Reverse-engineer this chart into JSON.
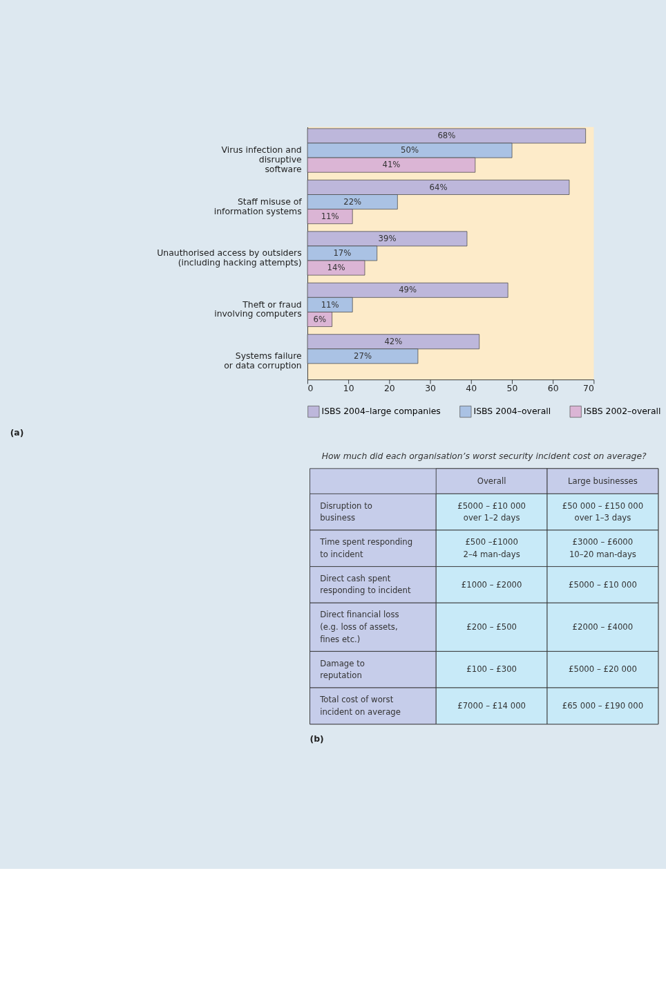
{
  "chart_data": [
    {
      "type": "bar",
      "orientation": "horizontal",
      "annotations": [
        "(a)"
      ],
      "categories": [
        "Virus infection and\ndisruptive\nsoftware",
        "Staff misuse of\ninformation systems",
        "Unauthorised access by outsiders\n(including hacking attempts)",
        "Theft or fraud\ninvolving computers",
        "Systems failure\nor data corruption"
      ],
      "series": [
        {
          "name": "ISBS 2004–large companies",
          "color": "#bdb7db",
          "values": [
            68,
            64,
            39,
            49,
            42
          ],
          "value_labels": [
            "68%",
            "64%",
            "39%",
            "49%",
            "42%"
          ]
        },
        {
          "name": "ISBS 2004–overall",
          "color": "#aac2e4",
          "values": [
            50,
            22,
            17,
            11,
            27
          ],
          "value_labels": [
            "50%",
            "22%",
            "17%",
            "11%",
            "27%"
          ]
        },
        {
          "name": "ISBS 2002–overall",
          "color": "#dbb5d5",
          "values": [
            41,
            11,
            14,
            6,
            null
          ],
          "value_labels": [
            "41%",
            "11%",
            "14%",
            "6%",
            null
          ]
        }
      ],
      "xlim": [
        0,
        70
      ],
      "xticks": [
        0,
        10,
        20,
        30,
        40,
        50,
        60,
        70
      ],
      "grid": false,
      "legend": "bottom"
    },
    {
      "type": "other",
      "title": "How much did each organisation’s worst security incident cost on average?",
      "annotations": [
        "(b)"
      ],
      "categories": [
        null,
        "Overall",
        "Large businesses"
      ],
      "y_categories": [
        "Disruption to\nbusiness",
        "Time spent responding\nto incident",
        "Direct cash spent\nresponding to incident",
        "Direct financial loss\n(e.g. loss of assets,\nfines etc.)",
        "Damage to\nreputation",
        "Total cost of worst\nincident on average"
      ],
      "cell_labels": [
        [
          "£5000 – £10 000\nover 1–2 days",
          "£50 000 – £150 000\nover 1–3 days"
        ],
        [
          "£500 –£1000\n2–4 man-days",
          "£3000 – £6000\n10–20 man-days"
        ],
        [
          "£1000 – £2000",
          "£5000 – £10 000"
        ],
        [
          "£200 – £500",
          "£2000 – £4000"
        ],
        [
          "£100 – £300",
          "£5000 – £20 000"
        ],
        [
          "£7000 – £14 000",
          "£65 000 – £190 000"
        ]
      ]
    }
  ]
}
